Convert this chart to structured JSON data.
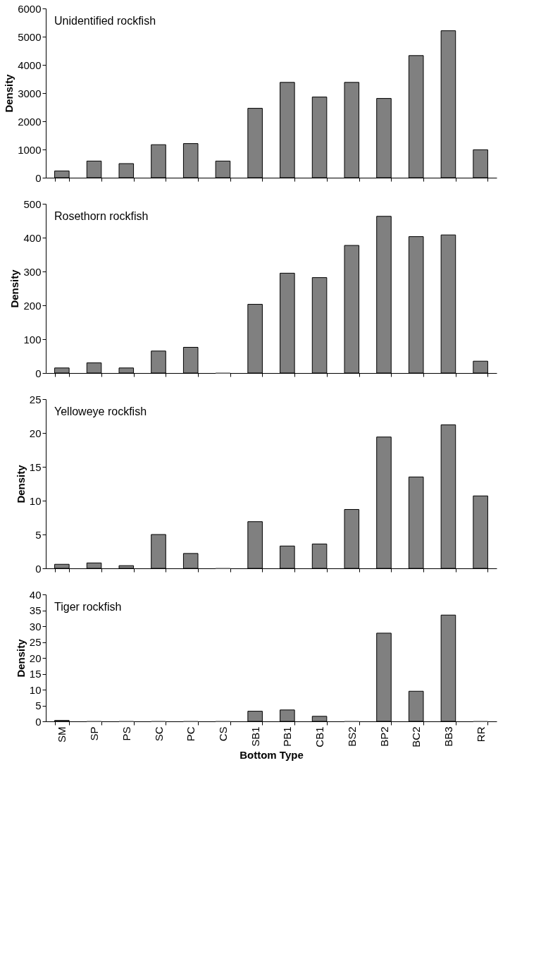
{
  "chart_data": [
    {
      "type": "bar",
      "title": "Unidentified rockfish",
      "ylabel": "Density",
      "categories": [
        null,
        null,
        null,
        null,
        null,
        null,
        null,
        null,
        null,
        null,
        null,
        null,
        null,
        null
      ],
      "values": [
        240,
        590,
        500,
        1170,
        1210,
        590,
        2460,
        3380,
        2860,
        3380,
        2810,
        4330,
        5210,
        990
      ],
      "color": "#808080",
      "ylim": [
        0,
        6000
      ],
      "yticks": [
        0,
        1000,
        2000,
        3000,
        4000,
        5000,
        6000
      ],
      "grid": false,
      "tick_labels": "y"
    },
    {
      "type": "bar",
      "title": "Rosethorn rockfish",
      "ylabel": "Density",
      "categories": [
        null,
        null,
        null,
        null,
        null,
        null,
        null,
        null,
        null,
        null,
        null,
        null,
        null,
        null
      ],
      "values": [
        15,
        30,
        15,
        65,
        76,
        0,
        203,
        295,
        282,
        377,
        463,
        403,
        408,
        35
      ],
      "color": "#808080",
      "ylim": [
        0,
        500
      ],
      "yticks": [
        0,
        100,
        200,
        300,
        400,
        500
      ],
      "grid": false,
      "tick_labels": "y"
    },
    {
      "type": "bar",
      "title": "Yelloweye rockfish",
      "ylabel": "Density",
      "categories": [
        null,
        null,
        null,
        null,
        null,
        null,
        null,
        null,
        null,
        null,
        null,
        null,
        null,
        null
      ],
      "values": [
        0.6,
        0.8,
        0.4,
        5.0,
        2.2,
        0,
        6.9,
        3.3,
        3.6,
        8.7,
        19.4,
        13.5,
        21.2,
        10.7
      ],
      "color": "#808080",
      "ylim": [
        0,
        25
      ],
      "yticks": [
        0,
        5,
        10,
        15,
        20,
        25
      ],
      "grid": false,
      "tick_labels": "y"
    },
    {
      "type": "bar",
      "title": "Tiger rockfish",
      "ylabel": "Density",
      "xlabel": "Bottom Type",
      "categories": [
        "SM",
        "SP",
        "PS",
        "SC",
        "PC",
        "CS",
        "SB1",
        "PB1",
        "CB1",
        "BS2",
        "BP2",
        "BC2",
        "BB3",
        "RR"
      ],
      "values": [
        0.3,
        0,
        0,
        0,
        0,
        0,
        3.2,
        3.6,
        1.6,
        0,
        27.8,
        9.5,
        33.5,
        0
      ],
      "color": "#808080",
      "ylim": [
        0,
        40
      ],
      "yticks": [
        0,
        5,
        10,
        15,
        20,
        25,
        30,
        35,
        40
      ],
      "grid": false
    }
  ]
}
